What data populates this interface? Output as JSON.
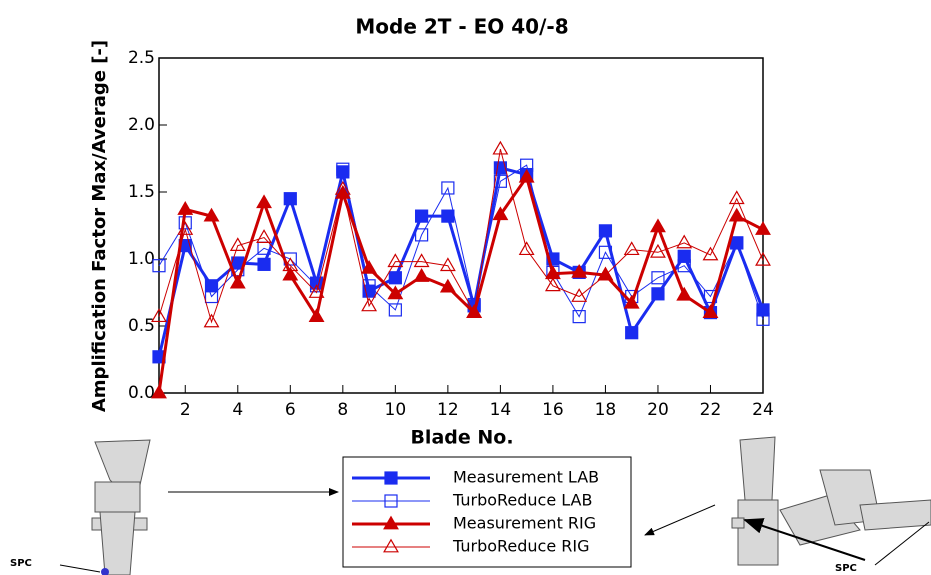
{
  "chart_data": {
    "type": "line",
    "title": "Mode 2T - EO 40/-8",
    "x_label": "Blade No.",
    "y_label": "Amplification Factor Max/Average [-]",
    "x": [
      1,
      2,
      3,
      4,
      5,
      6,
      7,
      8,
      9,
      10,
      11,
      12,
      13,
      14,
      15,
      16,
      17,
      18,
      19,
      20,
      21,
      22,
      23,
      24
    ],
    "xlim": [
      1,
      24
    ],
    "xticks": [
      2,
      4,
      6,
      8,
      10,
      12,
      14,
      16,
      18,
      20,
      22,
      24
    ],
    "ylim": [
      0,
      2.5
    ],
    "yticks": [
      {
        "value": 0,
        "label": "0.0"
      },
      0.5,
      {
        "value": 1,
        "label": "1.0"
      },
      1.5,
      {
        "value": 2,
        "label": "2.0"
      },
      2.5
    ],
    "series": [
      {
        "name": "Measurement LAB",
        "color": "#1a2cf0",
        "marker": "square",
        "filled": true,
        "line_width": 3,
        "values": [
          0.27,
          1.1,
          0.8,
          0.97,
          0.96,
          1.45,
          0.82,
          1.65,
          0.76,
          0.86,
          1.32,
          1.32,
          0.65,
          1.68,
          1.63,
          1.0,
          0.9,
          1.21,
          0.45,
          0.74,
          1.02,
          0.6,
          1.12,
          0.62
        ]
      },
      {
        "name": "TurboReduce LAB",
        "color": "#1a2cf0",
        "marker": "square",
        "filled": false,
        "line_width": 1,
        "values": [
          0.95,
          1.27,
          0.72,
          0.92,
          1.08,
          1.0,
          0.8,
          1.67,
          0.8,
          0.62,
          1.18,
          1.53,
          0.66,
          1.58,
          1.7,
          0.9,
          0.57,
          1.05,
          0.72,
          0.86,
          0.95,
          0.72,
          1.12,
          0.55
        ]
      },
      {
        "name": "Measurement RIG",
        "color": "#cc0000",
        "marker": "triangle",
        "filled": true,
        "line_width": 3,
        "values": [
          0.0,
          1.37,
          1.32,
          0.82,
          1.42,
          0.88,
          0.57,
          1.49,
          0.93,
          0.74,
          0.87,
          0.79,
          0.6,
          1.33,
          1.61,
          0.89,
          0.9,
          0.88,
          0.67,
          1.24,
          0.73,
          0.6,
          1.32,
          1.22
        ]
      },
      {
        "name": "TurboReduce RIG",
        "color": "#cc0000",
        "marker": "triangle",
        "filled": false,
        "line_width": 1,
        "values": [
          0.57,
          1.22,
          0.53,
          1.1,
          1.16,
          0.95,
          0.75,
          1.52,
          0.65,
          0.98,
          0.98,
          0.95,
          0.6,
          1.82,
          1.07,
          0.8,
          0.72,
          0.88,
          1.07,
          1.05,
          1.12,
          1.03,
          1.45,
          0.99
        ]
      }
    ],
    "annotations": [
      "SPC",
      "SPC"
    ]
  }
}
